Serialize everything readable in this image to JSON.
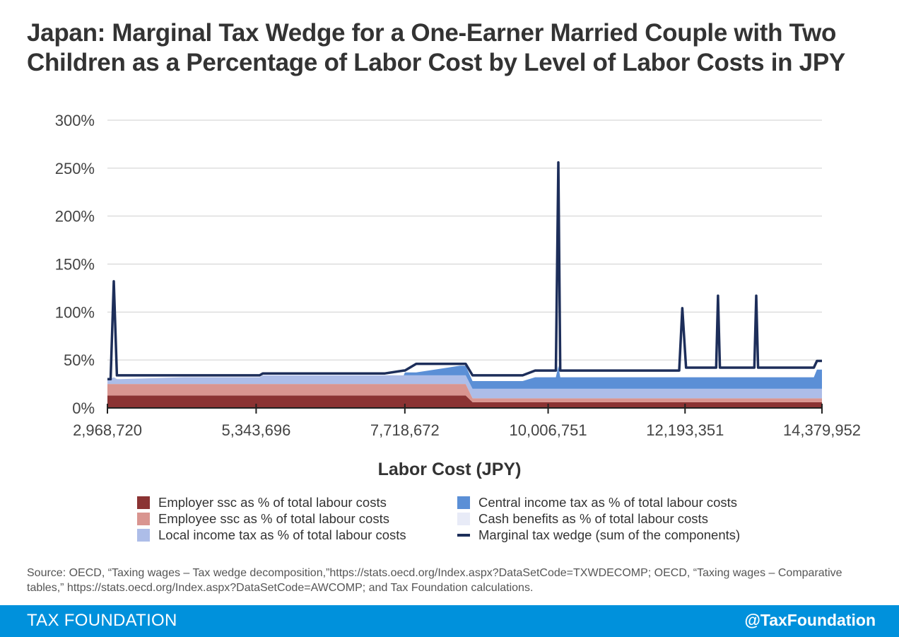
{
  "title": "Japan: Marginal Tax Wedge for a One-Earner Married Couple with Two Children as a Percentage of Labor Cost by Level of Labor Costs in JPY",
  "chart_data": {
    "type": "area",
    "xlabel": "Labor Cost (JPY)",
    "ylabel": "",
    "x_tick_labels": [
      "2,968,720",
      "5,343,696",
      "7,718,672",
      "10,006,751",
      "12,193,351",
      "14,379,952"
    ],
    "x_tick_values": [
      2968720,
      5343696,
      7718672,
      10006751,
      12193351,
      14379952
    ],
    "xlim": [
      2968720,
      14379952
    ],
    "y_tick_labels": [
      "0%",
      "50%",
      "100%",
      "150%",
      "200%",
      "250%",
      "300%"
    ],
    "y_tick_values": [
      0,
      50,
      100,
      150,
      200,
      250,
      300
    ],
    "ylim": [
      0,
      300
    ],
    "grid": true,
    "legend_position": "bottom",
    "x": [
      2968720,
      3020000,
      3070000,
      3120000,
      3180000,
      4200000,
      5400000,
      5450000,
      7400000,
      7700000,
      7720000,
      7900000,
      8600000,
      8690000,
      8800000,
      9600000,
      9800000,
      10130000,
      10170000,
      10200000,
      12100000,
      12150000,
      12210000,
      12690000,
      12720000,
      12750000,
      13300000,
      13330000,
      13360000,
      14250000,
      14300000,
      14379952
    ],
    "series": [
      {
        "name": "Employer ssc as % of total labour costs",
        "color": "#8b3333",
        "kind": "area",
        "values": [
          13,
          13,
          13,
          13,
          13,
          13,
          13,
          13,
          13,
          13,
          13,
          13,
          13,
          13,
          6,
          6,
          6,
          6,
          6,
          6,
          6,
          6,
          6,
          6,
          6,
          6,
          6,
          6,
          6,
          6,
          6,
          6
        ]
      },
      {
        "name": "Employee ssc as % of total labour costs",
        "color": "#d99590",
        "kind": "area",
        "values": [
          12,
          12,
          12,
          12,
          12,
          12,
          12,
          12,
          12,
          12,
          12,
          12,
          12,
          12,
          4,
          4,
          4,
          4,
          4,
          4,
          4,
          4,
          4,
          4,
          4,
          4,
          4,
          4,
          4,
          4,
          4,
          4
        ]
      },
      {
        "name": "Local income tax as % of total labour costs",
        "color": "#adbde8",
        "kind": "area",
        "values": [
          5,
          5,
          7,
          5,
          5,
          7,
          7,
          9,
          9,
          9,
          9,
          9,
          9,
          9,
          10,
          10,
          10,
          10,
          10,
          10,
          10,
          10,
          10,
          10,
          10,
          10,
          10,
          10,
          10,
          10,
          10,
          10
        ]
      },
      {
        "name": "Central income tax as % of total labour costs",
        "color": "#5b8fd6",
        "kind": "area",
        "values": [
          0,
          0,
          0,
          0,
          0,
          0,
          0,
          0,
          0,
          0,
          3,
          3,
          10,
          10,
          8,
          8,
          12,
          12,
          24,
          12,
          12,
          12,
          12,
          12,
          12,
          12,
          12,
          12,
          12,
          12,
          20,
          20
        ]
      },
      {
        "name": "Cash benefits as % of total labour costs",
        "color": "#e8ebf7",
        "kind": "area",
        "values": [
          0,
          0,
          0,
          0,
          0,
          0,
          0,
          0,
          0,
          0,
          0,
          0,
          0,
          0,
          0,
          0,
          0,
          0,
          0,
          0,
          0,
          0,
          0,
          0,
          0,
          0,
          0,
          0,
          0,
          0,
          0,
          0
        ]
      },
      {
        "name": "Marginal tax wedge (sum of the components)",
        "color": "#1d2e5a",
        "kind": "line",
        "values": [
          30,
          30,
          132,
          34,
          34,
          34,
          34,
          36,
          36,
          39,
          39,
          46,
          46,
          46,
          34,
          34,
          39,
          39,
          256,
          39,
          39,
          104,
          42,
          42,
          117,
          42,
          42,
          117,
          42,
          42,
          49,
          49
        ]
      }
    ]
  },
  "legend": [
    {
      "label": "Employer ssc as % of total labour costs",
      "color": "#8b3333",
      "kind": "box"
    },
    {
      "label": "Central income tax as % of total labour costs",
      "color": "#5b8fd6",
      "kind": "box"
    },
    {
      "label": "Employee ssc as % of total labour costs",
      "color": "#d99590",
      "kind": "box"
    },
    {
      "label": "Cash benefits as % of total labour costs",
      "color": "#e8ebf7",
      "kind": "box"
    },
    {
      "label": "Local income tax as % of total labour costs",
      "color": "#adbde8",
      "kind": "box"
    },
    {
      "label": "Marginal tax wedge (sum of the components)",
      "color": "#1d2e5a",
      "kind": "line"
    }
  ],
  "source": "Source: OECD, “Taxing wages – Tax wedge decomposition,”https://stats.oecd.org/Index.aspx?DataSetCode=TXWDECOMP; OECD, “Taxing wages – Comparative tables,” https://stats.oecd.org/Index.aspx?DataSetCode=AWCOMP; and Tax Foundation calculations.",
  "footer": {
    "brand": "TAX FOUNDATION",
    "handle": "@TaxFoundation"
  }
}
